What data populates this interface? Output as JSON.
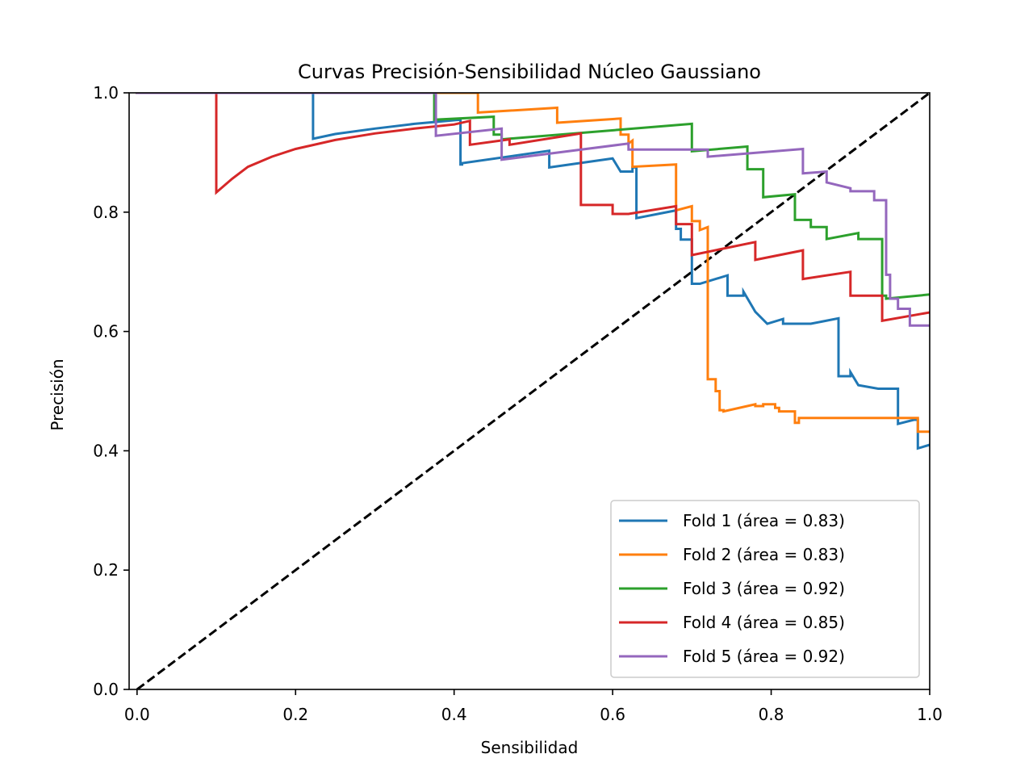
{
  "chart_data": {
    "type": "line",
    "title": "Curvas Precisión-Sensibilidad Núcleo Gaussiano",
    "xlabel": "Sensibilidad",
    "ylabel": "Precisión",
    "xlim": [
      -0.01,
      1.0
    ],
    "ylim": [
      0.0,
      1.0
    ],
    "x_ticks": [
      "0.0",
      "0.2",
      "0.4",
      "0.6",
      "0.8",
      "1.0"
    ],
    "y_ticks": [
      "0.0",
      "0.2",
      "0.4",
      "0.6",
      "0.8",
      "1.0"
    ],
    "grid": false,
    "legend_position": "lower-right",
    "reference_line": {
      "x": [
        0,
        1
      ],
      "y": [
        0,
        1
      ],
      "style": "dashed",
      "color": "#000000"
    },
    "series": [
      {
        "name": "Fold 1 (área = 0.83)",
        "color": "#1f77b4",
        "x": [
          0.0,
          0.222,
          0.222,
          0.25,
          0.3,
          0.35,
          0.408,
          0.408,
          0.41,
          0.41,
          0.52,
          0.52,
          0.6,
          0.6,
          0.61,
          0.61,
          0.625,
          0.625,
          0.63,
          0.63,
          0.68,
          0.68,
          0.686,
          0.686,
          0.7,
          0.7,
          0.71,
          0.745,
          0.745,
          0.765,
          0.765,
          0.78,
          0.78,
          0.795,
          0.795,
          0.815,
          0.815,
          0.85,
          0.85,
          0.885,
          0.885,
          0.9,
          0.9,
          0.91,
          0.91,
          0.935,
          0.935,
          0.96,
          0.96,
          0.98,
          0.98,
          0.985,
          0.985,
          1.0
        ],
        "y": [
          1.0,
          1.0,
          0.923,
          0.931,
          0.94,
          0.948,
          0.955,
          0.88,
          0.88,
          0.882,
          0.903,
          0.875,
          0.89,
          0.89,
          0.868,
          0.868,
          0.868,
          0.875,
          0.875,
          0.79,
          0.803,
          0.772,
          0.772,
          0.754,
          0.754,
          0.68,
          0.68,
          0.694,
          0.66,
          0.66,
          0.667,
          0.633,
          0.633,
          0.613,
          0.613,
          0.621,
          0.613,
          0.613,
          0.613,
          0.622,
          0.525,
          0.525,
          0.532,
          0.51,
          0.51,
          0.504,
          0.504,
          0.504,
          0.445,
          0.452,
          0.452,
          0.452,
          0.404,
          0.41
        ]
      },
      {
        "name": "Fold 2 (área = 0.83)",
        "color": "#ff7f0e",
        "x": [
          0.0,
          0.43,
          0.43,
          0.53,
          0.53,
          0.61,
          0.61,
          0.62,
          0.62,
          0.625,
          0.625,
          0.68,
          0.68,
          0.7,
          0.7,
          0.71,
          0.71,
          0.72,
          0.72,
          0.73,
          0.73,
          0.735,
          0.735,
          0.74,
          0.74,
          0.78,
          0.78,
          0.79,
          0.79,
          0.805,
          0.805,
          0.81,
          0.81,
          0.83,
          0.83,
          0.835,
          0.835,
          0.89,
          0.89,
          0.925,
          0.925,
          0.97,
          0.97,
          0.985,
          0.985,
          1.0
        ],
        "y": [
          1.0,
          1.0,
          0.967,
          0.975,
          0.95,
          0.957,
          0.93,
          0.93,
          0.915,
          0.92,
          0.876,
          0.88,
          0.803,
          0.81,
          0.785,
          0.785,
          0.77,
          0.775,
          0.52,
          0.52,
          0.5,
          0.5,
          0.468,
          0.468,
          0.466,
          0.478,
          0.475,
          0.475,
          0.478,
          0.478,
          0.472,
          0.472,
          0.466,
          0.466,
          0.447,
          0.447,
          0.455,
          0.455,
          0.455,
          0.455,
          0.455,
          0.455,
          0.455,
          0.455,
          0.432,
          0.432
        ]
      },
      {
        "name": "Fold 3 (área = 0.92)",
        "color": "#2ca02c",
        "x": [
          0.0,
          0.375,
          0.375,
          0.45,
          0.45,
          0.46,
          0.46,
          0.7,
          0.7,
          0.77,
          0.77,
          0.79,
          0.79,
          0.83,
          0.83,
          0.85,
          0.85,
          0.87,
          0.87,
          0.91,
          0.91,
          0.94,
          0.94,
          0.945,
          0.945,
          1.0
        ],
        "y": [
          1.0,
          1.0,
          0.955,
          0.96,
          0.93,
          0.93,
          0.922,
          0.948,
          0.902,
          0.91,
          0.872,
          0.872,
          0.825,
          0.83,
          0.787,
          0.787,
          0.775,
          0.775,
          0.755,
          0.765,
          0.755,
          0.755,
          0.66,
          0.66,
          0.655,
          0.662
        ]
      },
      {
        "name": "Fold 4 (área = 0.85)",
        "color": "#d62728",
        "x": [
          0.0,
          0.1,
          0.1,
          0.12,
          0.14,
          0.17,
          0.2,
          0.25,
          0.3,
          0.35,
          0.4,
          0.42,
          0.42,
          0.47,
          0.47,
          0.56,
          0.56,
          0.6,
          0.6,
          0.62,
          0.62,
          0.68,
          0.68,
          0.7,
          0.7,
          0.78,
          0.78,
          0.84,
          0.84,
          0.9,
          0.9,
          0.94,
          0.94,
          1.0
        ],
        "y": [
          1.0,
          1.0,
          0.833,
          0.856,
          0.876,
          0.893,
          0.906,
          0.921,
          0.932,
          0.94,
          0.947,
          0.953,
          0.913,
          0.922,
          0.913,
          0.932,
          0.812,
          0.812,
          0.797,
          0.797,
          0.797,
          0.81,
          0.78,
          0.78,
          0.728,
          0.75,
          0.72,
          0.736,
          0.688,
          0.7,
          0.66,
          0.66,
          0.618,
          0.632
        ]
      },
      {
        "name": "Fold 5 (área = 0.92)",
        "color": "#9467bd",
        "x": [
          0.0,
          0.377,
          0.377,
          0.46,
          0.46,
          0.62,
          0.62,
          0.72,
          0.72,
          0.84,
          0.84,
          0.87,
          0.87,
          0.9,
          0.9,
          0.93,
          0.93,
          0.945,
          0.945,
          0.95,
          0.95,
          0.96,
          0.96,
          0.975,
          0.975,
          1.0
        ],
        "y": [
          1.0,
          1.0,
          0.928,
          0.94,
          0.888,
          0.915,
          0.905,
          0.905,
          0.893,
          0.906,
          0.865,
          0.868,
          0.85,
          0.84,
          0.835,
          0.835,
          0.82,
          0.82,
          0.695,
          0.695,
          0.655,
          0.655,
          0.638,
          0.638,
          0.61,
          0.61
        ]
      }
    ]
  }
}
